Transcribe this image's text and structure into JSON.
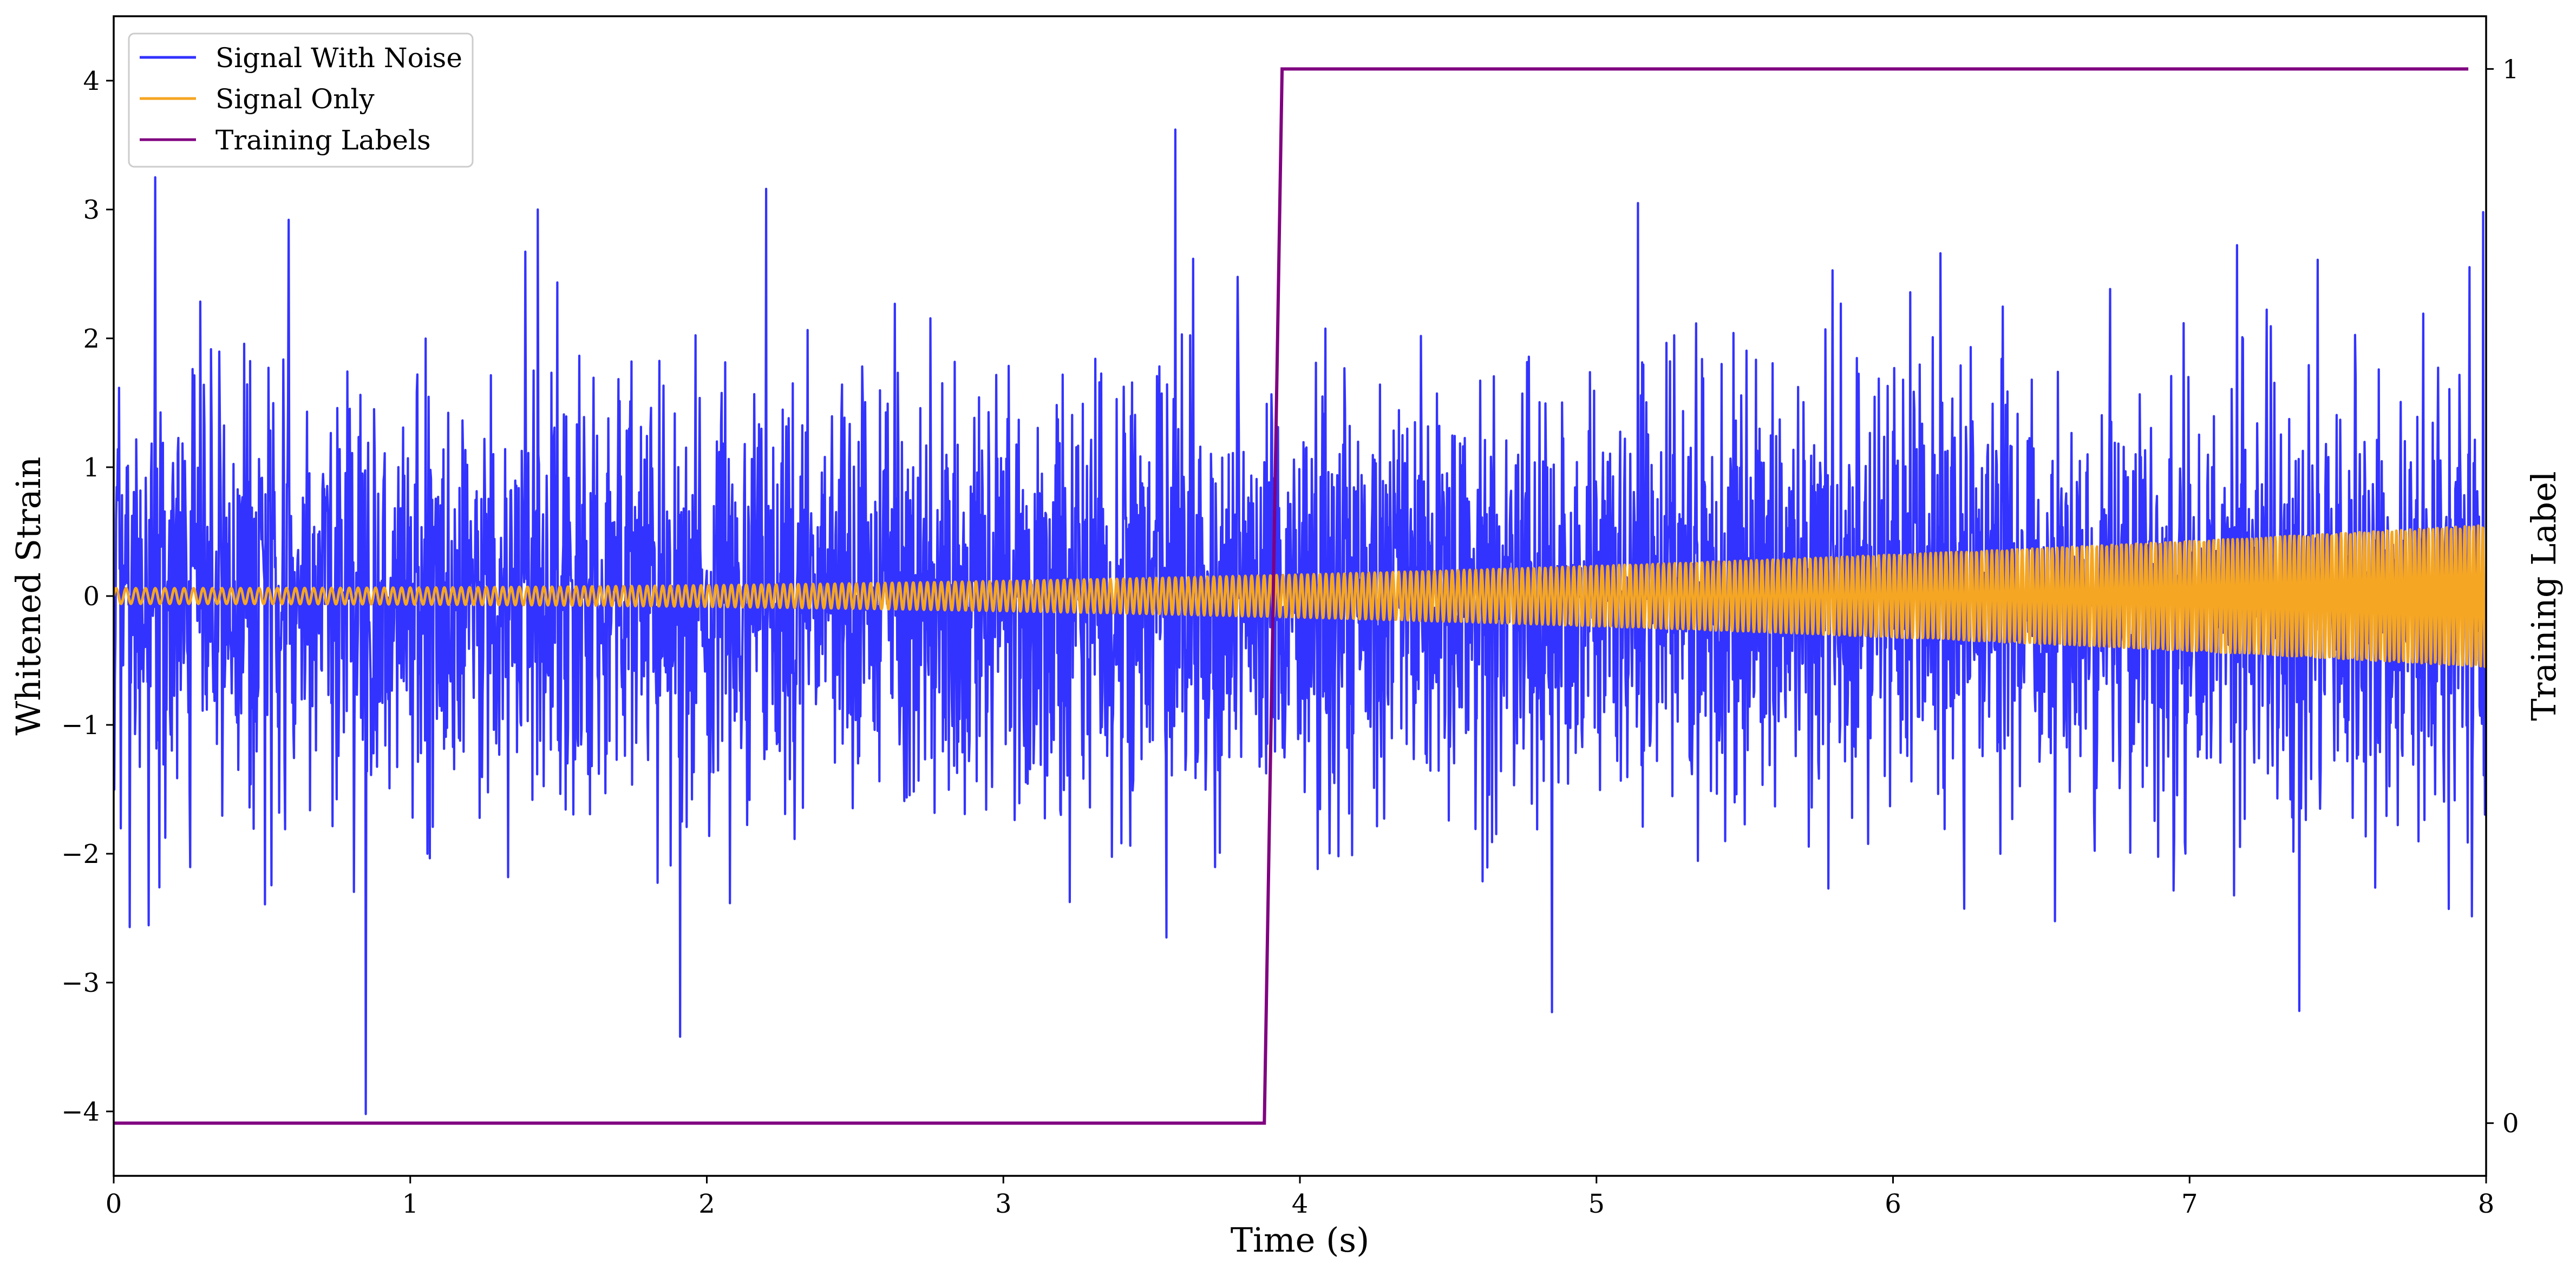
{
  "chart_data": {
    "type": "line",
    "title": "",
    "xlabel": "Time (s)",
    "ylabel": "Whitened Strain",
    "y2label": "Training Label",
    "xlim": [
      0,
      8
    ],
    "ylim": [
      -4.5,
      4.5
    ],
    "y2lim": [
      -0.05,
      1.05
    ],
    "x_ticks": [
      0,
      1,
      2,
      3,
      4,
      5,
      6,
      7,
      8
    ],
    "y_ticks": [
      -4,
      -3,
      -2,
      -1,
      0,
      1,
      2,
      3,
      4
    ],
    "y2_ticks": [
      0,
      1
    ],
    "legend_position": "top-left",
    "grid": false,
    "series": [
      {
        "name": "Signal With Noise",
        "color": "#3333ff",
        "axis": "left",
        "description_values": "Gaussian-like whitened noise, typical range about -2 to 2, peaks up to 3.6, min about -4.0",
        "spikes": [
          {
            "x": 0.14,
            "y": 3.25
          },
          {
            "x": 0.59,
            "y": 2.92
          },
          {
            "x": 0.85,
            "y": -4.02
          },
          {
            "x": 1.43,
            "y": 3.0
          },
          {
            "x": 1.91,
            "y": -3.42
          },
          {
            "x": 2.2,
            "y": 3.16
          },
          {
            "x": 3.58,
            "y": 3.62
          },
          {
            "x": 3.55,
            "y": -2.65
          },
          {
            "x": 4.85,
            "y": -3.23
          },
          {
            "x": 5.14,
            "y": 3.05
          },
          {
            "x": 7.37,
            "y": -3.22
          },
          {
            "x": 7.99,
            "y": 2.98
          }
        ]
      },
      {
        "name": "Signal Only",
        "color": "#f5a623",
        "axis": "left",
        "amplitude_start": 0.06,
        "amplitude_end": 0.55,
        "frequency_start_hz": 30,
        "frequency_end_hz": 48
      },
      {
        "name": "Training Labels",
        "color": "#800080",
        "axis": "right",
        "x": [
          0,
          3.88,
          3.94,
          7.94
        ],
        "y": [
          0,
          0,
          1,
          1
        ]
      }
    ]
  }
}
